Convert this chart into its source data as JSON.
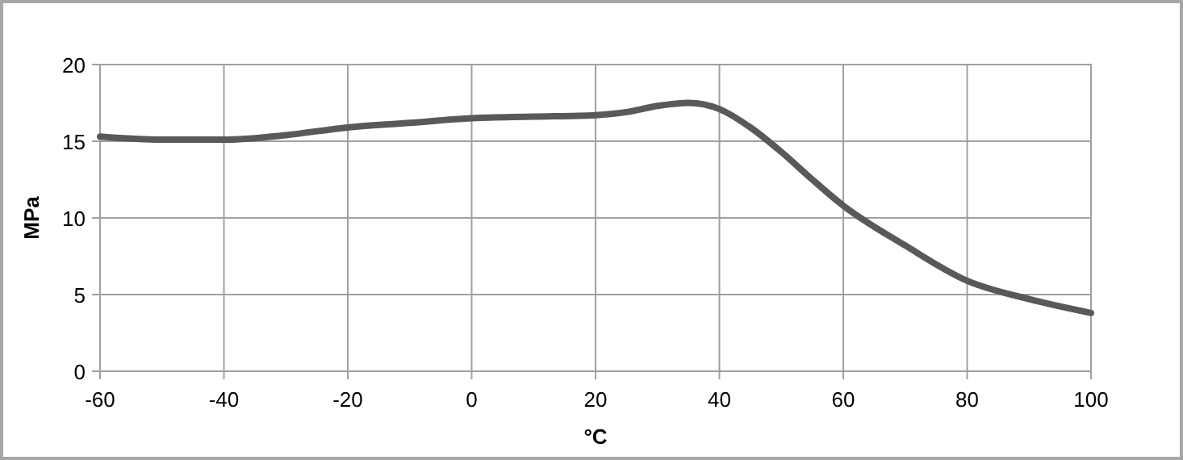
{
  "chart_data": {
    "type": "line",
    "xlabel": "°C",
    "ylabel": "MPa",
    "x": [
      -60,
      -50,
      -40,
      -30,
      -20,
      -10,
      0,
      10,
      20,
      25,
      30,
      35,
      40,
      45,
      50,
      55,
      60,
      70,
      80,
      90,
      100
    ],
    "series": [
      {
        "color": "#595959",
        "values": [
          15.3,
          15.1,
          15.1,
          15.4,
          15.9,
          16.2,
          16.5,
          16.6,
          16.7,
          16.9,
          17.3,
          17.5,
          17.1,
          15.9,
          14.3,
          12.5,
          10.8,
          8.2,
          5.9,
          4.7,
          3.8
        ]
      }
    ],
    "xlim": [
      -60,
      100
    ],
    "xticks": [
      -60,
      -40,
      -20,
      0,
      20,
      40,
      60,
      80,
      100
    ],
    "ylim": [
      0,
      20
    ],
    "yticks": [
      0,
      5,
      10,
      15,
      20
    ],
    "grid": true,
    "marker": "none",
    "line_style": "solid"
  }
}
